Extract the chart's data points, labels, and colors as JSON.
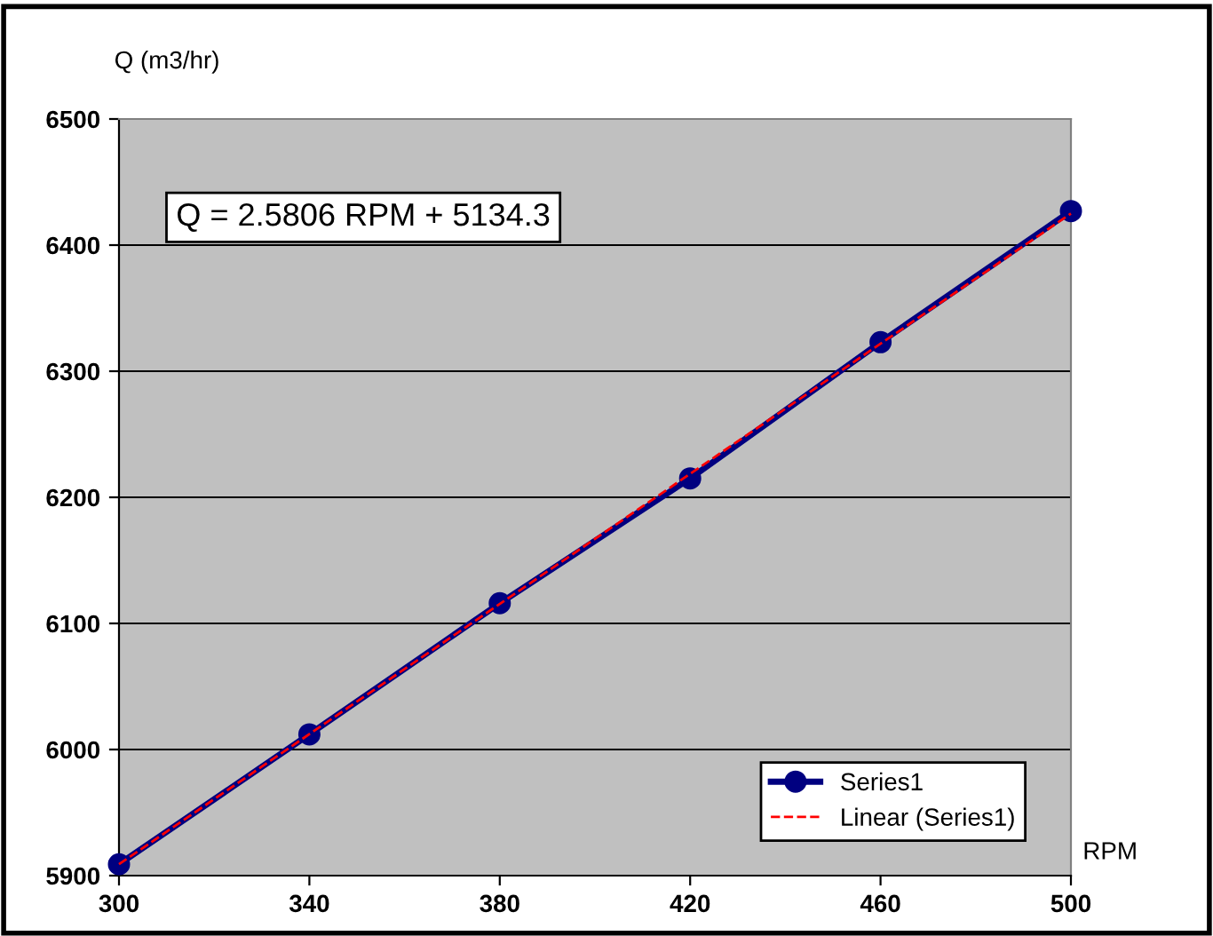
{
  "chart_data": {
    "type": "line",
    "xlabel": "RPM",
    "ylabel": "Q (m3/hr)",
    "x": [
      300,
      340,
      380,
      420,
      460,
      500
    ],
    "series": [
      {
        "name": "Series1",
        "color": "#000080",
        "values": [
          5909,
          6012,
          6116,
          6215,
          6323,
          6427
        ],
        "marker": "circle",
        "line_style": "solid"
      },
      {
        "name": "Linear (Series1)",
        "color": "#ff0000",
        "x": [
          300,
          500
        ],
        "values": [
          5909,
          6425
        ],
        "marker": "none",
        "line_style": "dashed"
      }
    ],
    "xlim": [
      300,
      500
    ],
    "xticks": [
      300,
      340,
      380,
      420,
      460,
      500
    ],
    "ylim": [
      5900,
      6500
    ],
    "yticks": [
      5900,
      6000,
      6100,
      6200,
      6300,
      6400,
      6500
    ],
    "grid": "y",
    "legend": "bottom right",
    "annotations": [
      "Q = 2.5806 RPM + 5134.3"
    ]
  }
}
